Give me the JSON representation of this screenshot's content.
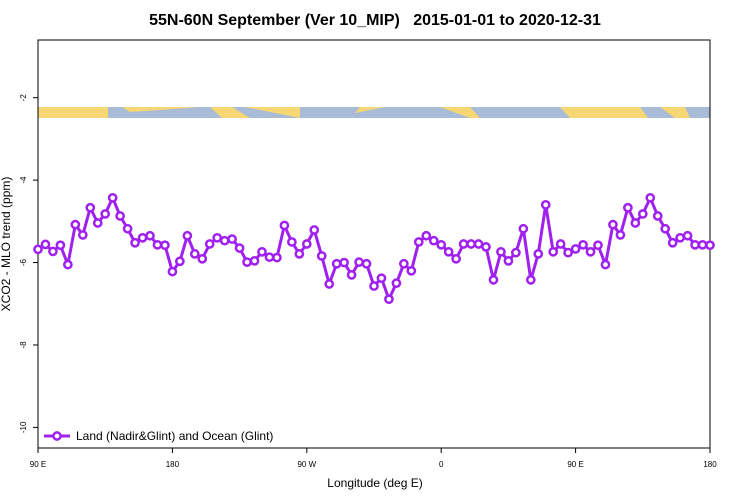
{
  "chart_data": {
    "type": "line",
    "title": "55N-60N September (Ver 10_MIP)   2015-01-01 to 2020-12-31",
    "x_label": "Longitude (deg E)",
    "y_label": "XCO2 - MLO trend (ppm)",
    "xlim": [
      90,
      540
    ],
    "xticks": [
      {
        "value": 90,
        "label": "90 E"
      },
      {
        "value": 180,
        "label": "180"
      },
      {
        "value": 270,
        "label": "90 W"
      },
      {
        "value": 360,
        "label": "0"
      },
      {
        "value": 450,
        "label": "90 E"
      },
      {
        "value": 540,
        "label": "180"
      }
    ],
    "ylim": [
      -10.5,
      -0.6
    ],
    "yticks": [
      -2,
      -4,
      -6,
      -8,
      -10
    ],
    "legend": "bottom-left",
    "x": [
      90,
      95,
      100,
      105,
      110,
      115,
      120,
      125,
      130,
      135,
      140,
      145,
      150,
      155,
      160,
      165,
      170,
      175,
      180,
      185,
      190,
      195,
      200,
      205,
      210,
      215,
      220,
      225,
      230,
      235,
      240,
      245,
      250,
      255,
      260,
      265,
      270,
      275,
      280,
      285,
      290,
      295,
      300,
      305,
      310,
      315,
      320,
      325,
      330,
      335,
      340,
      345,
      350,
      355,
      360,
      365,
      370,
      375,
      380,
      385,
      390,
      395,
      400,
      405,
      410,
      415,
      420,
      425,
      430,
      435,
      440,
      445,
      450,
      455,
      460,
      465,
      470,
      475,
      480,
      485,
      490,
      495,
      500,
      505,
      510,
      515,
      520,
      525,
      530,
      535,
      540
    ],
    "series": [
      {
        "name": "Land (Nadir&Glint) and Ocean (Glint)",
        "color": "#a020f0",
        "values": [
          -5.68,
          -5.56,
          -5.73,
          -5.58,
          -6.05,
          -5.08,
          -5.33,
          -4.67,
          -5.04,
          -4.82,
          -4.43,
          -4.87,
          -5.18,
          -5.52,
          -5.4,
          -5.35,
          -5.57,
          -5.58,
          -6.22,
          -5.97,
          -5.35,
          -5.79,
          -5.91,
          -5.55,
          -5.4,
          -5.47,
          -5.43,
          -5.65,
          -5.99,
          -5.96,
          -5.74,
          -5.87,
          -5.88,
          -5.1,
          -5.5,
          -5.79,
          -5.55,
          -5.21,
          -5.84,
          -6.52,
          -6.03,
          -6.0,
          -6.3,
          -5.99,
          -6.03,
          -6.57,
          -6.38,
          -6.89,
          -6.5,
          -6.03,
          -6.2,
          -5.5,
          -5.35,
          -5.47,
          -5.57,
          -5.74,
          -5.91,
          -5.55,
          -5.55,
          -5.55,
          -5.62,
          -6.42,
          -5.74,
          -5.96,
          -5.76,
          -5.18,
          -6.42,
          -5.79,
          -4.6,
          -5.74,
          -5.55,
          -5.76,
          -5.67,
          -5.57,
          -5.74,
          -5.58,
          -6.05,
          -5.08,
          -5.33,
          -4.67,
          -5.04,
          -4.82,
          -4.43,
          -4.87,
          -5.18,
          -5.52,
          -5.4,
          -5.35,
          -5.57,
          -5.57,
          -5.58
        ]
      }
    ]
  }
}
